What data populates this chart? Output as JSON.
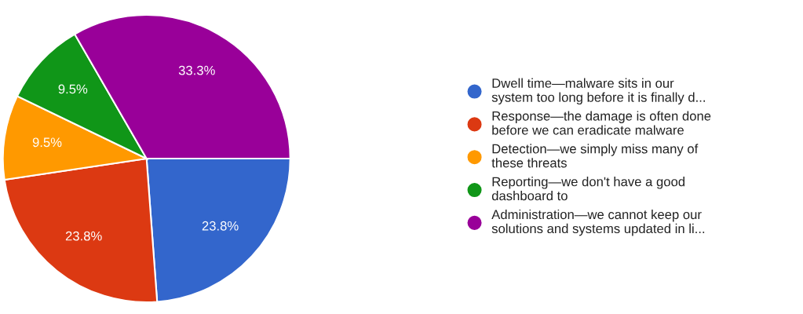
{
  "chart_data": {
    "type": "pie",
    "categories": [
      "Dwell time—malware sits in our\nsystem too long before it is finally d...",
      "Response—the damage is often done\nbefore we can eradicate malware",
      "Detection—we simply miss many of\nthese threats",
      "Reporting—we don't have a good\ndashboard to",
      "Administration—we cannot keep our\nsolutions and systems updated in li..."
    ],
    "values": [
      23.8,
      23.8,
      9.5,
      9.5,
      33.3
    ],
    "value_labels": [
      "23.8%",
      "23.8%",
      "9.5%",
      "9.5%",
      "33.3%"
    ],
    "colors": [
      "#3366cc",
      "#dc3912",
      "#ff9900",
      "#109618",
      "#990099"
    ],
    "legend": "right"
  }
}
